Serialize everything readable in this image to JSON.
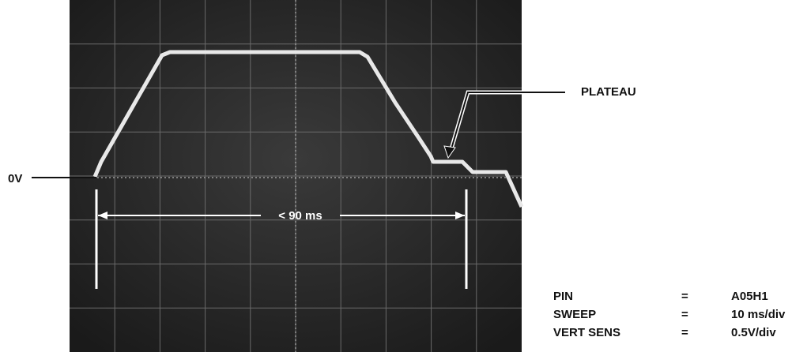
{
  "annotations": {
    "zero_volt": "0V",
    "plateau": "PLATEAU",
    "duration": "< 90 ms"
  },
  "settings": {
    "rows": [
      [
        "PIN",
        "=",
        "A05H1"
      ],
      [
        "SWEEP",
        "=",
        "10 ms/div"
      ],
      [
        "VERT SENS",
        "=",
        "0.5V/div"
      ]
    ]
  }
}
